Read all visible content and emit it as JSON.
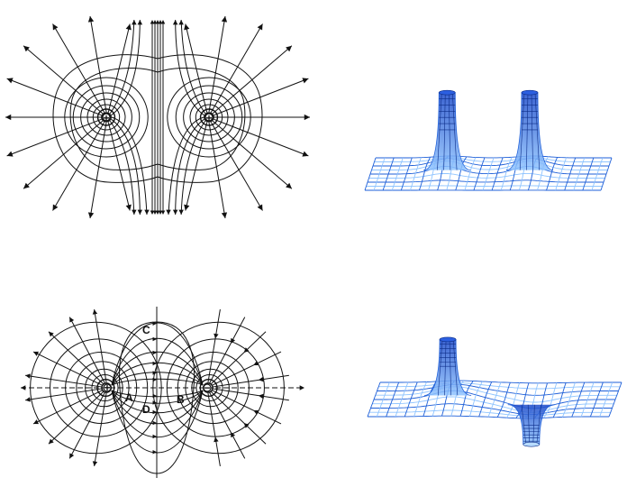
{
  "diagrams": {
    "like_charges_2d": {
      "source_1": "+",
      "source_2": "+"
    },
    "like_charges_3d": {},
    "opposite_charges_2d": {
      "source_1": "+",
      "source_2": "−",
      "points": {
        "a": "A",
        "b": "B",
        "c": "C",
        "d": "D"
      }
    },
    "opposite_charges_3d": {}
  },
  "colors": {
    "ink": "#111111",
    "mesh": "#1e5fd8",
    "mesh_light": "#8fc4ff"
  }
}
